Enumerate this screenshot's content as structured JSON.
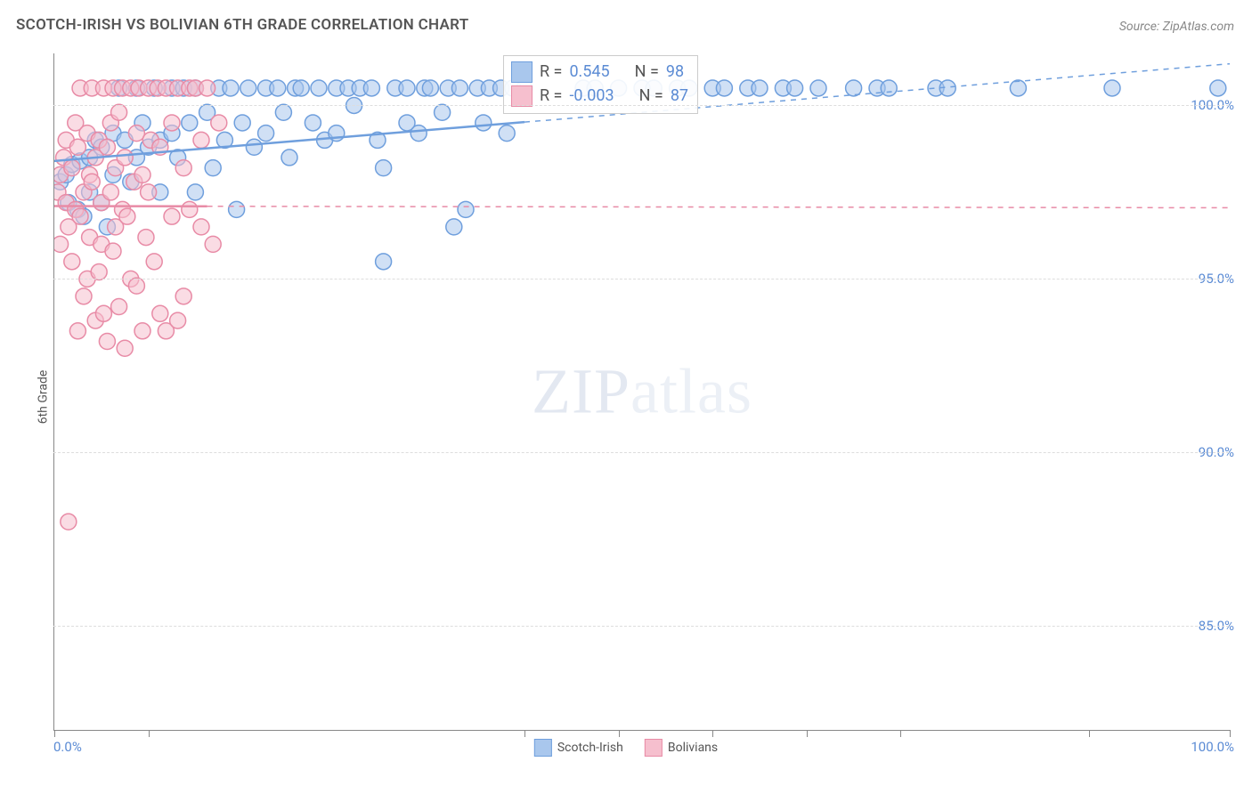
{
  "title": "SCOTCH-IRISH VS BOLIVIAN 6TH GRADE CORRELATION CHART",
  "source": "Source: ZipAtlas.com",
  "y_axis_label": "6th Grade",
  "watermark_bold": "ZIP",
  "watermark_rest": "atlas",
  "chart": {
    "type": "scatter",
    "xlim": [
      0,
      100
    ],
    "ylim": [
      82,
      101.5
    ],
    "x_tick_positions": [
      0,
      8,
      40,
      48,
      56,
      64,
      72,
      88,
      100
    ],
    "x_tick_labels": {
      "left": "0.0%",
      "right": "100.0%"
    },
    "y_gridlines": [
      85,
      90,
      95,
      100
    ],
    "y_tick_labels": [
      "85.0%",
      "90.0%",
      "95.0%",
      "100.0%"
    ],
    "background_color": "#ffffff",
    "grid_color": "#dddddd",
    "series": [
      {
        "name": "Scotch-Irish",
        "fill": "#a9c7ed",
        "stroke": "#6f9fdd",
        "fill_opacity": 0.55,
        "marker_radius": 9,
        "regression": {
          "x1": 0,
          "y1": 98.4,
          "x2": 100,
          "y2": 101.2,
          "solid_until_x": 40
        },
        "R": "0.545",
        "N": "98",
        "points": [
          [
            0.5,
            97.8
          ],
          [
            1,
            98.0
          ],
          [
            1.2,
            97.2
          ],
          [
            1.5,
            98.3
          ],
          [
            2,
            97.0
          ],
          [
            2.2,
            98.4
          ],
          [
            2.5,
            96.8
          ],
          [
            3,
            98.5
          ],
          [
            3,
            97.5
          ],
          [
            3.5,
            99.0
          ],
          [
            4,
            97.2
          ],
          [
            4,
            98.8
          ],
          [
            4.5,
            96.5
          ],
          [
            5,
            99.2
          ],
          [
            5,
            98.0
          ],
          [
            5.5,
            100.5
          ],
          [
            6,
            99.0
          ],
          [
            6.5,
            97.8
          ],
          [
            7,
            100.5
          ],
          [
            7,
            98.5
          ],
          [
            7.5,
            99.5
          ],
          [
            8,
            98.8
          ],
          [
            8.5,
            100.5
          ],
          [
            9,
            99.0
          ],
          [
            9,
            97.5
          ],
          [
            10,
            100.5
          ],
          [
            10,
            99.2
          ],
          [
            10.5,
            98.5
          ],
          [
            11,
            100.5
          ],
          [
            11.5,
            99.5
          ],
          [
            12,
            97.5
          ],
          [
            12,
            100.5
          ],
          [
            13,
            99.8
          ],
          [
            13.5,
            98.2
          ],
          [
            14,
            100.5
          ],
          [
            14.5,
            99.0
          ],
          [
            15,
            100.5
          ],
          [
            15.5,
            97.0
          ],
          [
            16,
            99.5
          ],
          [
            16.5,
            100.5
          ],
          [
            17,
            98.8
          ],
          [
            18,
            100.5
          ],
          [
            18,
            99.2
          ],
          [
            19,
            100.5
          ],
          [
            19.5,
            99.8
          ],
          [
            20,
            98.5
          ],
          [
            20.5,
            100.5
          ],
          [
            21,
            100.5
          ],
          [
            22,
            99.5
          ],
          [
            22.5,
            100.5
          ],
          [
            23,
            99.0
          ],
          [
            24,
            100.5
          ],
          [
            24,
            99.2
          ],
          [
            25,
            100.5
          ],
          [
            25.5,
            100.0
          ],
          [
            26,
            100.5
          ],
          [
            27,
            100.5
          ],
          [
            27.5,
            99.0
          ],
          [
            28,
            98.2
          ],
          [
            28,
            95.5
          ],
          [
            29,
            100.5
          ],
          [
            30,
            100.5
          ],
          [
            30,
            99.5
          ],
          [
            31,
            99.2
          ],
          [
            31.5,
            100.5
          ],
          [
            32,
            100.5
          ],
          [
            33,
            99.8
          ],
          [
            33.5,
            100.5
          ],
          [
            34,
            96.5
          ],
          [
            34.5,
            100.5
          ],
          [
            35,
            97.0
          ],
          [
            36,
            100.5
          ],
          [
            36.5,
            99.5
          ],
          [
            37,
            100.5
          ],
          [
            38,
            100.5
          ],
          [
            38.5,
            99.2
          ],
          [
            39,
            100.5
          ],
          [
            40,
            100.5
          ],
          [
            45,
            100.5
          ],
          [
            46,
            100.5
          ],
          [
            48,
            100.5
          ],
          [
            50,
            100.5
          ],
          [
            51,
            100.5
          ],
          [
            53,
            100.5
          ],
          [
            54,
            100.5
          ],
          [
            56,
            100.5
          ],
          [
            57,
            100.5
          ],
          [
            59,
            100.5
          ],
          [
            60,
            100.5
          ],
          [
            62,
            100.5
          ],
          [
            63,
            100.5
          ],
          [
            65,
            100.5
          ],
          [
            68,
            100.5
          ],
          [
            70,
            100.5
          ],
          [
            71,
            100.5
          ],
          [
            75,
            100.5
          ],
          [
            76,
            100.5
          ],
          [
            82,
            100.5
          ],
          [
            90,
            100.5
          ],
          [
            99,
            100.5
          ]
        ]
      },
      {
        "name": "Bolivians",
        "fill": "#f6bfce",
        "stroke": "#e88ba6",
        "fill_opacity": 0.55,
        "marker_radius": 9,
        "regression": {
          "x1": 0,
          "y1": 97.1,
          "x2": 100,
          "y2": 97.05,
          "solid_until_x": 13
        },
        "R": "-0.003",
        "N": "87",
        "points": [
          [
            0.3,
            97.5
          ],
          [
            0.5,
            98.0
          ],
          [
            0.5,
            96.0
          ],
          [
            0.8,
            98.5
          ],
          [
            1,
            97.2
          ],
          [
            1,
            99.0
          ],
          [
            1.2,
            96.5
          ],
          [
            1.2,
            88.0
          ],
          [
            1.5,
            98.2
          ],
          [
            1.5,
            95.5
          ],
          [
            1.8,
            99.5
          ],
          [
            1.8,
            97.0
          ],
          [
            2,
            93.5
          ],
          [
            2,
            98.8
          ],
          [
            2.2,
            96.8
          ],
          [
            2.2,
            100.5
          ],
          [
            2.5,
            97.5
          ],
          [
            2.5,
            94.5
          ],
          [
            2.8,
            99.2
          ],
          [
            2.8,
            95.0
          ],
          [
            3,
            98.0
          ],
          [
            3,
            96.2
          ],
          [
            3.2,
            97.8
          ],
          [
            3.2,
            100.5
          ],
          [
            3.5,
            93.8
          ],
          [
            3.5,
            98.5
          ],
          [
            3.8,
            99.0
          ],
          [
            3.8,
            95.2
          ],
          [
            4,
            97.2
          ],
          [
            4,
            96.0
          ],
          [
            4.2,
            100.5
          ],
          [
            4.2,
            94.0
          ],
          [
            4.5,
            98.8
          ],
          [
            4.5,
            93.2
          ],
          [
            4.8,
            97.5
          ],
          [
            4.8,
            99.5
          ],
          [
            5,
            100.5
          ],
          [
            5,
            95.8
          ],
          [
            5.2,
            98.2
          ],
          [
            5.2,
            96.5
          ],
          [
            5.5,
            94.2
          ],
          [
            5.5,
            99.8
          ],
          [
            5.8,
            97.0
          ],
          [
            5.8,
            100.5
          ],
          [
            6,
            93.0
          ],
          [
            6,
            98.5
          ],
          [
            6.2,
            96.8
          ],
          [
            6.5,
            95.0
          ],
          [
            6.5,
            100.5
          ],
          [
            6.8,
            97.8
          ],
          [
            7,
            99.2
          ],
          [
            7,
            94.8
          ],
          [
            7.2,
            100.5
          ],
          [
            7.5,
            98.0
          ],
          [
            7.5,
            93.5
          ],
          [
            7.8,
            96.2
          ],
          [
            8,
            100.5
          ],
          [
            8,
            97.5
          ],
          [
            8.2,
            99.0
          ],
          [
            8.5,
            95.5
          ],
          [
            8.8,
            100.5
          ],
          [
            9,
            98.8
          ],
          [
            9,
            94.0
          ],
          [
            9.5,
            93.5
          ],
          [
            9.5,
            100.5
          ],
          [
            10,
            96.8
          ],
          [
            10,
            99.5
          ],
          [
            10.5,
            93.8
          ],
          [
            10.5,
            100.5
          ],
          [
            11,
            98.2
          ],
          [
            11,
            94.5
          ],
          [
            11.5,
            100.5
          ],
          [
            11.5,
            97.0
          ],
          [
            12,
            100.5
          ],
          [
            12.5,
            99.0
          ],
          [
            12.5,
            96.5
          ],
          [
            13,
            100.5
          ],
          [
            13.5,
            96.0
          ],
          [
            14,
            99.5
          ]
        ]
      }
    ]
  },
  "legend": {
    "items": [
      {
        "label": "Scotch-Irish",
        "fill": "#a9c7ed",
        "stroke": "#6f9fdd"
      },
      {
        "label": "Bolivians",
        "fill": "#f6bfce",
        "stroke": "#e88ba6"
      }
    ]
  },
  "stats_box": {
    "rows": [
      {
        "fill": "#a9c7ed",
        "stroke": "#6f9fdd",
        "r_label": "R =",
        "r_val": "0.545",
        "n_label": "N =",
        "n_val": "98"
      },
      {
        "fill": "#f6bfce",
        "stroke": "#e88ba6",
        "r_label": "R =",
        "r_val": "-0.003",
        "n_label": "N =",
        "n_val": "87"
      }
    ]
  }
}
